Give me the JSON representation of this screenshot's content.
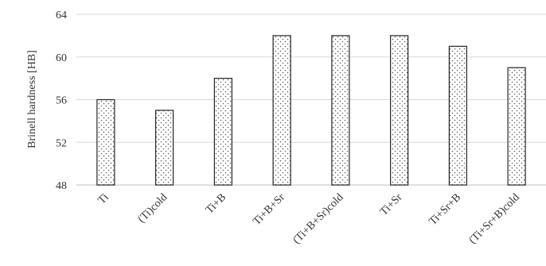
{
  "chart_data": {
    "type": "bar",
    "title": "",
    "xlabel": "",
    "ylabel": "Brinell hardness [HB]",
    "ylim": [
      48,
      64
    ],
    "yticks": [
      48,
      52,
      56,
      60,
      64
    ],
    "grid": true,
    "categories": [
      "Ti",
      "(Ti)cold",
      "Ti+B",
      "Ti+B+Sr",
      "(Ti+B+Sr)cold",
      "Ti+Sr",
      "Ti+Sr+B",
      "(Ti+Sr+B)cold"
    ],
    "values": [
      56,
      55,
      58,
      62,
      62,
      62,
      61,
      59
    ],
    "bar_fill": "dotted pattern",
    "bar_stroke": "#262626",
    "grid_color": "#d9d9d9"
  }
}
